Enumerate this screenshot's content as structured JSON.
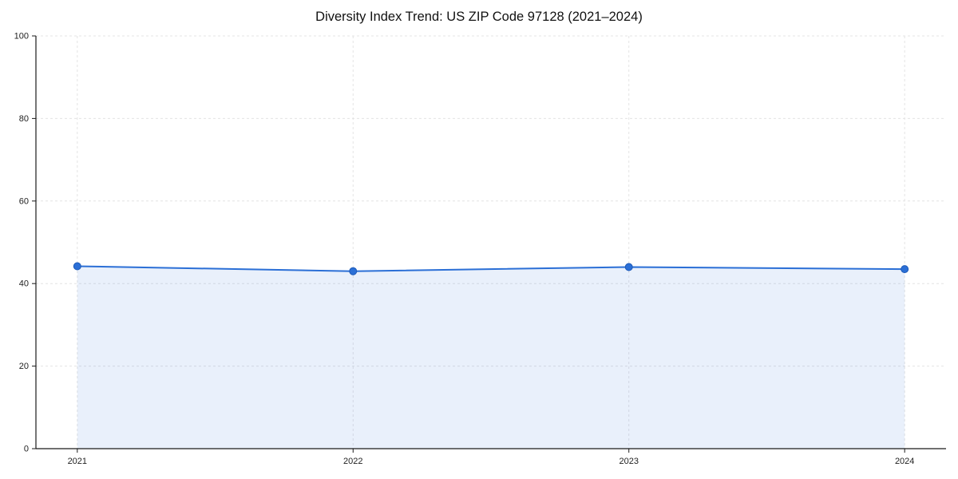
{
  "chart_data": {
    "type": "line",
    "title": "Diversity Index Trend: US ZIP Code 97128 (2021–2024)",
    "x": [
      2021,
      2022,
      2023,
      2024
    ],
    "series": [
      {
        "name": "Diversity Index",
        "values": [
          44.2,
          43.0,
          44.0,
          43.5
        ]
      }
    ],
    "xlabel": "",
    "ylabel": "",
    "xticks": [
      2021,
      2022,
      2023,
      2024
    ],
    "yticks": [
      0,
      20,
      40,
      60,
      80,
      100
    ],
    "xlim": [
      2020.85,
      2024.15
    ],
    "ylim": [
      0,
      100
    ],
    "grid": "dashed",
    "legend": "none",
    "area_fill": true,
    "colors": {
      "line": "#2b6fd6",
      "marker": "#2b6fd6",
      "marker_edge": "#1d5ab8",
      "fill": "#2b6fd6",
      "fill_opacity": "0.1",
      "grid": "#e4e4e4",
      "axis": "#1a1a1a",
      "tick_label": "#222222",
      "background": "#ffffff"
    }
  }
}
